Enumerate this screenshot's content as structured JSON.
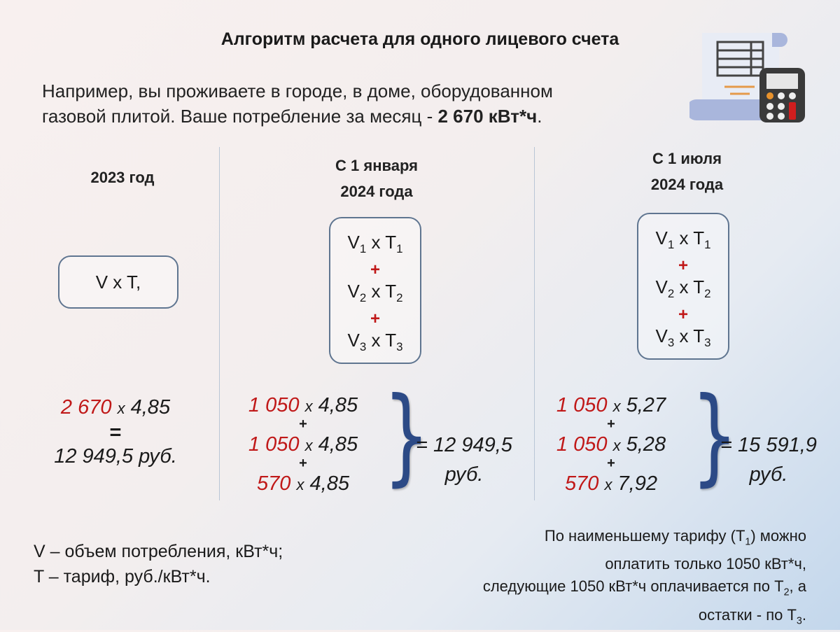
{
  "title": "Алгоритм расчета для одного лицевого счета",
  "intro": {
    "line1": "Например, вы проживаете в городе, в доме, оборудованном",
    "line2_prefix": "газовой плитой. Ваше потребление за месяц - ",
    "line2_bold": "2 670 кВт*ч",
    "line2_suffix": "."
  },
  "icon": "document-with-calculator-icon",
  "columns": [
    {
      "heading": [
        "2023 год"
      ],
      "formula": "V x T,",
      "calc": {
        "v": "2 670",
        "x": "x",
        "t": "4,85",
        "eq": "=",
        "result": "12 949,5 руб."
      }
    },
    {
      "heading": [
        "С 1 января",
        "2024 года"
      ],
      "formula": [
        {
          "v": "V",
          "vs": "1",
          "t": "T",
          "ts": "1"
        },
        {
          "v": "V",
          "vs": "2",
          "t": "T",
          "ts": "2"
        },
        {
          "v": "V",
          "vs": "3",
          "t": "T",
          "ts": "3"
        }
      ],
      "plus": "+",
      "mult": "x",
      "calc": [
        {
          "v": "1 050",
          "t": "4,85"
        },
        {
          "v": "1 050",
          "t": "4,85"
        },
        {
          "v": "570",
          "t": "4,85"
        }
      ],
      "result": [
        "= 12 949,5",
        "руб."
      ]
    },
    {
      "heading": [
        "С 1 июля",
        "2024 года"
      ],
      "formula": [
        {
          "v": "V",
          "vs": "1",
          "t": "T",
          "ts": "1"
        },
        {
          "v": "V",
          "vs": "2",
          "t": "T",
          "ts": "2"
        },
        {
          "v": "V",
          "vs": "3",
          "t": "T",
          "ts": "3"
        }
      ],
      "plus": "+",
      "mult": "x",
      "calc": [
        {
          "v": "1 050",
          "t": "5,27"
        },
        {
          "v": "1 050",
          "t": "5,28"
        },
        {
          "v": "570",
          "t": "7,92"
        }
      ],
      "result": [
        "= 15 591,9",
        "руб."
      ]
    }
  ],
  "legend": [
    "V – объем потребления, кВт*ч;",
    "T – тариф, руб./кВт*ч."
  ],
  "note": {
    "l1a": "По наименьшему тарифу (T",
    "l1s": "1",
    "l1b": ") можно",
    "l2": "оплатить только 1050 кВт*ч,",
    "l3a": "следующие 1050 кВт*ч оплачивается по T",
    "l3s": "2",
    "l3b": ", а",
    "l4a": "остатки - по T",
    "l4s": "3",
    "l4b": "."
  },
  "colors": {
    "accent_red": "#c01818",
    "brace_blue": "#2c4a86",
    "box_border": "#5f7590"
  }
}
